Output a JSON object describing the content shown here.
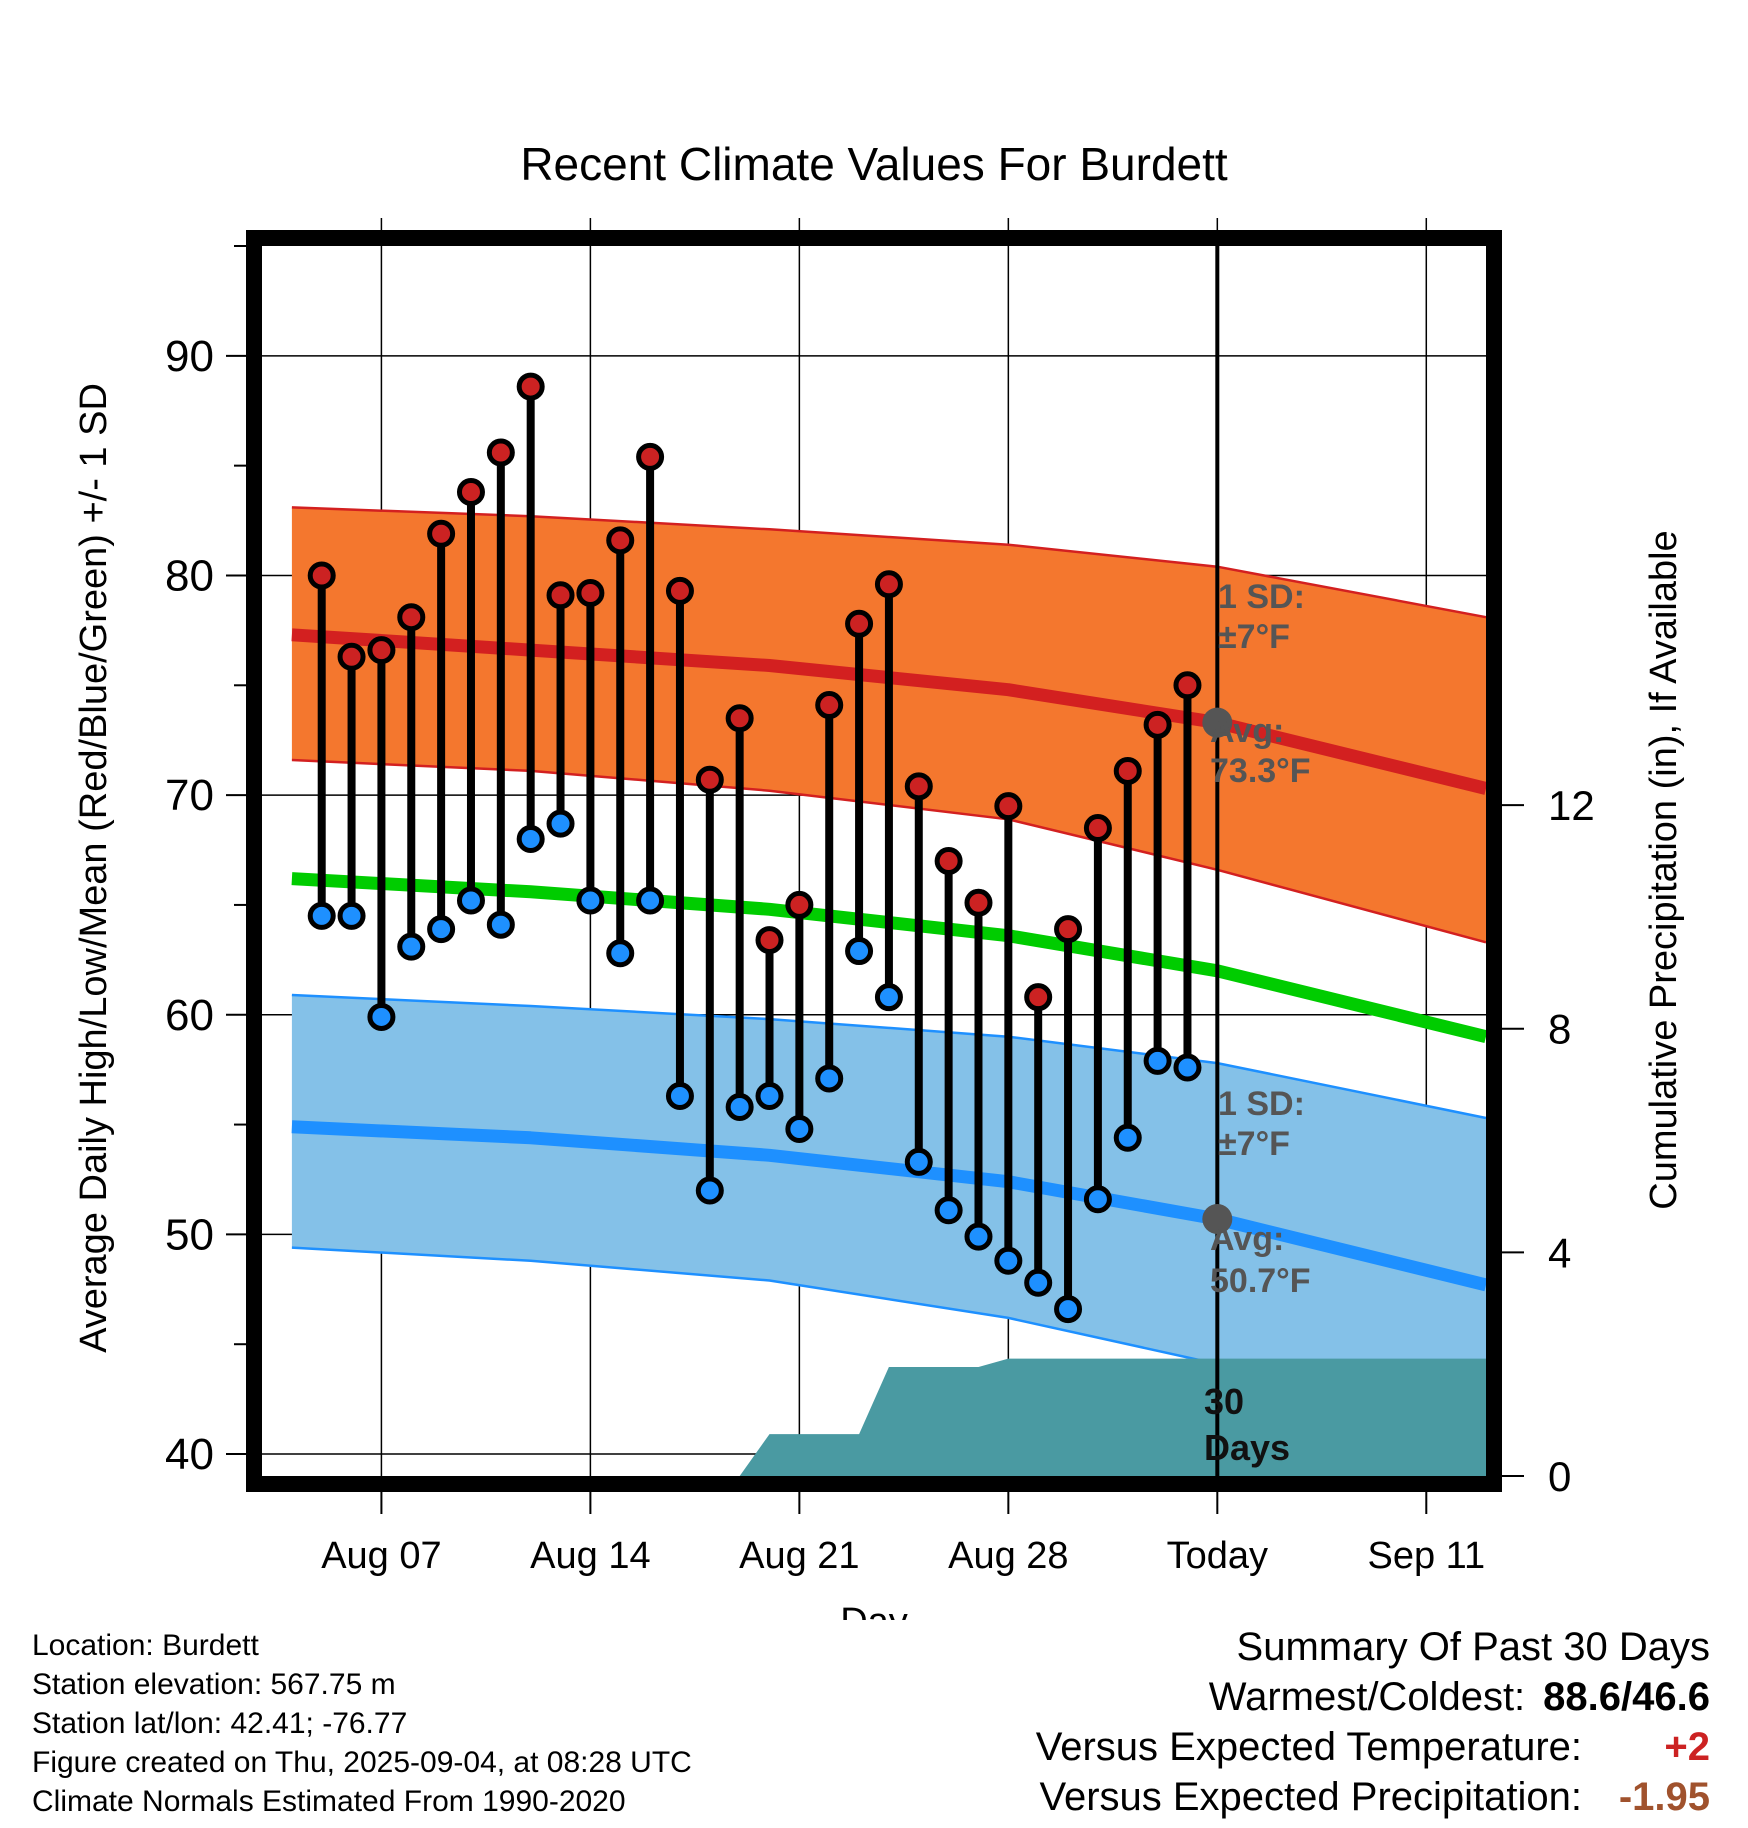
{
  "chart_data": {
    "type": "line",
    "title": "Recent Climate Values For Burdett",
    "xlabel": "Day",
    "ylabel": "Average Daily High/Low/Mean (Red/Blue/Green) +/- 1 SD",
    "ylabel_right": "Cumulative Precipitation (in), If Available",
    "x_tick_labels": [
      "Aug 07",
      "Aug 14",
      "Aug 21",
      "Aug 28",
      "Today",
      "Sep 11"
    ],
    "x_tick_dates": [
      "2025-08-07",
      "2025-08-14",
      "2025-08-21",
      "2025-08-28",
      "2025-09-04",
      "2025-09-11"
    ],
    "xlim": [
      "2025-08-03",
      "2025-09-13"
    ],
    "ylim": [
      39.0,
      95.0
    ],
    "y_ticks": [
      40,
      50,
      60,
      70,
      80,
      90
    ],
    "y2lim": [
      0,
      22
    ],
    "y2_ticks": [
      0,
      4,
      8,
      12
    ],
    "grid": true,
    "today": "2025-09-04",
    "colors": {
      "high_fill": "#f4772e",
      "high_line": "#d32020",
      "low_fill": "#84c1e8",
      "low_line": "#1e90ff",
      "mean_line": "#00cc00",
      "precip_fill": "#4a9aa2",
      "high_point": "#cc2222",
      "low_point": "#1e90ff",
      "marker": "#555555"
    },
    "normal_high": [
      {
        "x": "2025-08-04",
        "y": 77.3
      },
      {
        "x": "2025-08-12",
        "y": 76.6
      },
      {
        "x": "2025-08-20",
        "y": 75.9
      },
      {
        "x": "2025-08-28",
        "y": 74.8
      },
      {
        "x": "2025-09-04",
        "y": 73.3
      },
      {
        "x": "2025-09-13",
        "y": 70.3
      }
    ],
    "normal_high_upper": [
      {
        "x": "2025-08-04",
        "y": 83.1
      },
      {
        "x": "2025-08-12",
        "y": 82.7
      },
      {
        "x": "2025-08-20",
        "y": 82.1
      },
      {
        "x": "2025-08-28",
        "y": 81.4
      },
      {
        "x": "2025-09-04",
        "y": 80.4
      },
      {
        "x": "2025-09-13",
        "y": 78.1
      }
    ],
    "normal_high_lower": [
      {
        "x": "2025-08-04",
        "y": 71.6
      },
      {
        "x": "2025-08-12",
        "y": 71.1
      },
      {
        "x": "2025-08-20",
        "y": 70.2
      },
      {
        "x": "2025-08-28",
        "y": 68.9
      },
      {
        "x": "2025-09-04",
        "y": 66.6
      },
      {
        "x": "2025-09-13",
        "y": 63.3
      }
    ],
    "normal_mean": [
      {
        "x": "2025-08-04",
        "y": 66.2
      },
      {
        "x": "2025-08-12",
        "y": 65.6
      },
      {
        "x": "2025-08-20",
        "y": 64.8
      },
      {
        "x": "2025-08-28",
        "y": 63.6
      },
      {
        "x": "2025-09-04",
        "y": 62.0
      },
      {
        "x": "2025-09-13",
        "y": 59.0
      }
    ],
    "normal_low": [
      {
        "x": "2025-08-04",
        "y": 54.9
      },
      {
        "x": "2025-08-12",
        "y": 54.4
      },
      {
        "x": "2025-08-20",
        "y": 53.6
      },
      {
        "x": "2025-08-28",
        "y": 52.4
      },
      {
        "x": "2025-09-04",
        "y": 50.7
      },
      {
        "x": "2025-09-13",
        "y": 47.7
      }
    ],
    "normal_low_upper": [
      {
        "x": "2025-08-04",
        "y": 60.9
      },
      {
        "x": "2025-08-12",
        "y": 60.4
      },
      {
        "x": "2025-08-20",
        "y": 59.8
      },
      {
        "x": "2025-08-28",
        "y": 59.0
      },
      {
        "x": "2025-09-04",
        "y": 57.8
      },
      {
        "x": "2025-09-13",
        "y": 55.3
      }
    ],
    "normal_low_lower": [
      {
        "x": "2025-08-04",
        "y": 49.4
      },
      {
        "x": "2025-08-12",
        "y": 48.8
      },
      {
        "x": "2025-08-20",
        "y": 47.9
      },
      {
        "x": "2025-08-28",
        "y": 46.2
      },
      {
        "x": "2025-09-04",
        "y": 44.1
      },
      {
        "x": "2025-09-07",
        "y": 43.1
      },
      {
        "x": "2025-09-13",
        "y": 42.5
      }
    ],
    "daily": [
      {
        "x": "2025-08-05",
        "high": 80.0,
        "low": 64.5
      },
      {
        "x": "2025-08-06",
        "high": 76.3,
        "low": 64.5
      },
      {
        "x": "2025-08-07",
        "high": 76.6,
        "low": 59.9
      },
      {
        "x": "2025-08-08",
        "high": 78.1,
        "low": 63.1
      },
      {
        "x": "2025-08-09",
        "high": 81.9,
        "low": 63.9
      },
      {
        "x": "2025-08-10",
        "high": 83.8,
        "low": 65.2
      },
      {
        "x": "2025-08-11",
        "high": 85.6,
        "low": 64.1
      },
      {
        "x": "2025-08-12",
        "high": 88.6,
        "low": 68.0
      },
      {
        "x": "2025-08-13",
        "high": 79.1,
        "low": 68.7
      },
      {
        "x": "2025-08-14",
        "high": 79.2,
        "low": 65.2
      },
      {
        "x": "2025-08-15",
        "high": 81.6,
        "low": 62.8
      },
      {
        "x": "2025-08-16",
        "high": 85.4,
        "low": 65.2
      },
      {
        "x": "2025-08-17",
        "high": 79.3,
        "low": 56.3
      },
      {
        "x": "2025-08-18",
        "high": 70.7,
        "low": 52.0
      },
      {
        "x": "2025-08-19",
        "high": 73.5,
        "low": 55.8
      },
      {
        "x": "2025-08-20",
        "high": 63.4,
        "low": 56.3
      },
      {
        "x": "2025-08-21",
        "high": 65.0,
        "low": 54.8
      },
      {
        "x": "2025-08-22",
        "high": 74.1,
        "low": 57.1
      },
      {
        "x": "2025-08-23",
        "high": 77.8,
        "low": 62.9
      },
      {
        "x": "2025-08-24",
        "high": 79.6,
        "low": 60.8
      },
      {
        "x": "2025-08-25",
        "high": 70.4,
        "low": 53.3
      },
      {
        "x": "2025-08-26",
        "high": 67.0,
        "low": 51.1
      },
      {
        "x": "2025-08-27",
        "high": 65.1,
        "low": 49.9
      },
      {
        "x": "2025-08-28",
        "high": 69.5,
        "low": 48.8
      },
      {
        "x": "2025-08-29",
        "high": 60.8,
        "low": 47.8
      },
      {
        "x": "2025-08-30",
        "high": 63.9,
        "low": 46.6
      },
      {
        "x": "2025-08-31",
        "high": 68.5,
        "low": 51.6
      },
      {
        "x": "2025-09-01",
        "high": 71.1,
        "low": 54.4
      },
      {
        "x": "2025-09-02",
        "high": 73.2,
        "low": 57.9
      },
      {
        "x": "2025-09-03",
        "high": 75.0,
        "low": 57.6
      }
    ],
    "precip": [
      {
        "x": "2025-08-03",
        "y": 0.0
      },
      {
        "x": "2025-08-19",
        "y": 0.0
      },
      {
        "x": "2025-08-20",
        "y": 0.75
      },
      {
        "x": "2025-08-23",
        "y": 0.75
      },
      {
        "x": "2025-08-24",
        "y": 1.95
      },
      {
        "x": "2025-08-27",
        "y": 1.95
      },
      {
        "x": "2025-08-28",
        "y": 2.1
      },
      {
        "x": "2025-09-13",
        "y": 2.1
      }
    ],
    "annotations": {
      "high_sd_label": "1 SD:",
      "high_sd_value": "±7°F",
      "high_avg_label": "Avg:",
      "high_avg_value": "73.3°F",
      "low_sd_label": "1 SD:",
      "low_sd_value": "±7°F",
      "low_avg_label": "Avg:",
      "low_avg_value": "50.7°F",
      "period_number": "30",
      "period_unit": "Days"
    }
  },
  "footer": {
    "location": "Location: Burdett",
    "elevation": "Station elevation: 567.75 m",
    "latlon": "Station lat/lon: 42.41; -76.77",
    "created": "Figure created on Thu, 2025-09-04, at 08:28 UTC",
    "normals": "Climate Normals Estimated From 1990-2020"
  },
  "summary": {
    "title": "Summary Of Past 30 Days",
    "warm_cold_label": "Warmest/Coldest:",
    "warm_cold_value": "88.6/46.6",
    "temp_label": "Versus Expected Temperature:",
    "temp_value": "+2",
    "temp_color": "#cc2222",
    "precip_label": "Versus Expected Precipitation:",
    "precip_value": "-1.95",
    "precip_color": "#a0522d"
  }
}
